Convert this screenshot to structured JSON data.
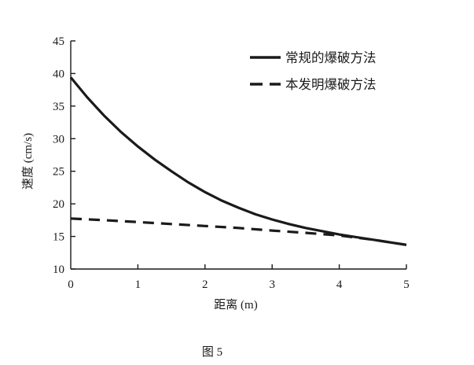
{
  "figure": {
    "caption": "图 5"
  },
  "chart_data": {
    "type": "line",
    "title": "",
    "xlabel": "距离 (m)",
    "ylabel": "速度 (cm/s)",
    "xlim": [
      0,
      5
    ],
    "ylim": [
      10,
      45
    ],
    "x_ticks": [
      0,
      1,
      2,
      3,
      4,
      5
    ],
    "y_ticks": [
      10,
      15,
      20,
      25,
      30,
      35,
      40,
      45
    ],
    "grid": false,
    "legend_position": "top-right",
    "axis_color": "#1a1a1a",
    "series": [
      {
        "name": "常规的爆破方法",
        "line_style": "solid",
        "color": "#1a1a1a",
        "x": [
          0,
          0.25,
          0.5,
          0.75,
          1,
          1.25,
          1.5,
          1.75,
          2,
          2.25,
          2.5,
          2.75,
          3,
          3.25,
          3.5,
          3.75,
          4,
          4.25,
          4.5,
          4.75,
          5
        ],
        "y": [
          39.4,
          36.3,
          33.5,
          31.0,
          28.8,
          26.8,
          25.0,
          23.3,
          21.8,
          20.5,
          19.4,
          18.4,
          17.6,
          16.9,
          16.3,
          15.8,
          15.3,
          14.9,
          14.5,
          14.1,
          13.7
        ]
      },
      {
        "name": "本发明爆破方法",
        "line_style": "dashed",
        "color": "#1a1a1a",
        "x": [
          0,
          0.5,
          1,
          1.5,
          2,
          2.5,
          3,
          3.5,
          4,
          4.5,
          5
        ],
        "y": [
          17.75,
          17.5,
          17.2,
          16.9,
          16.6,
          16.3,
          15.9,
          15.55,
          15.15,
          14.5,
          13.7
        ]
      }
    ]
  }
}
